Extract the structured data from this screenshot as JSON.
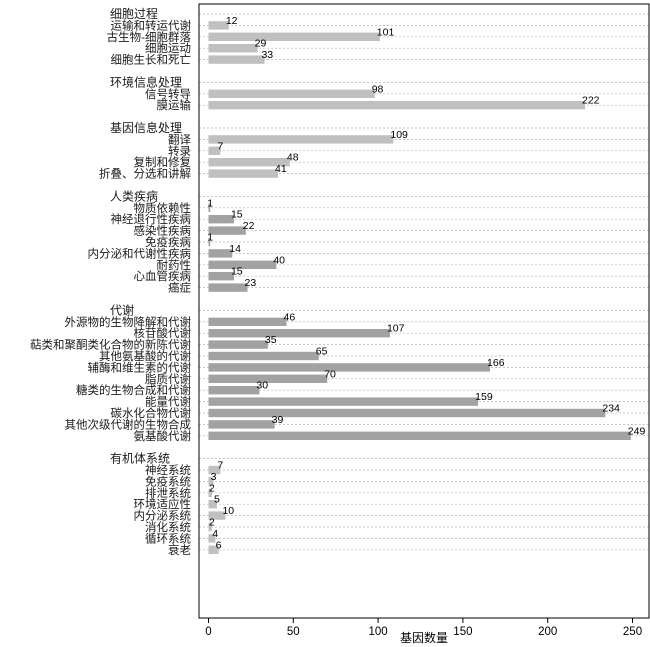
{
  "chart_data": {
    "type": "bar",
    "orientation": "horizontal",
    "xlabel": "基因数量",
    "xlim": [
      0,
      255
    ],
    "xticks": [
      0,
      50,
      100,
      150,
      200,
      250
    ],
    "grid": true,
    "colors": {
      "light": "#c0c0c0",
      "dark": "#a2a2a2"
    },
    "groups": [
      {
        "name": "细胞过程",
        "color": "light",
        "categories": [
          "运输和转运代谢",
          "古生物-细胞群落",
          "细胞运动",
          "细胞生长和死亡"
        ],
        "values": [
          12,
          101,
          29,
          33
        ]
      },
      {
        "name": "环境信息处理",
        "color": "light",
        "categories": [
          "信号转导",
          "膜运输"
        ],
        "values": [
          98,
          222
        ]
      },
      {
        "name": "基因信息处理",
        "color": "light",
        "categories": [
          "翻译",
          "转录",
          "复制和修复",
          "折叠、分选和讲解"
        ],
        "values": [
          109,
          7,
          48,
          41
        ]
      },
      {
        "name": "人类疾病",
        "color": "dark",
        "categories": [
          "物质依赖性",
          "神经退行性疾病",
          "感染性疾病",
          "免疫疾病",
          "内分泌和代谢性疾病",
          "耐药性",
          "心血管疾病",
          "癌症"
        ],
        "values": [
          1,
          15,
          22,
          1,
          14,
          40,
          15,
          23
        ]
      },
      {
        "name": "代谢",
        "color": "dark",
        "categories": [
          "外源物的生物降解和代谢",
          "核苷酸代谢",
          "萜类和聚酮类化合物的新陈代谢",
          "其他氨基酸的代谢",
          "辅酶和维生素的代谢",
          "脂质代谢",
          "糖类的生物合成和代谢",
          "能量代谢",
          "碳水化合物代谢",
          "其他次级代谢的生物合成",
          "氨基酸代谢"
        ],
        "values": [
          46,
          107,
          35,
          65,
          166,
          70,
          30,
          159,
          234,
          39,
          249
        ]
      },
      {
        "name": "有机体系统",
        "color": "light",
        "categories": [
          "神经系统",
          "免疫系统",
          "排泄系统",
          "环境适应性",
          "内分泌系统",
          "消化系统",
          "循环系统",
          "衰老"
        ],
        "values": [
          7,
          3,
          2,
          5,
          10,
          2,
          4,
          6
        ]
      }
    ]
  }
}
